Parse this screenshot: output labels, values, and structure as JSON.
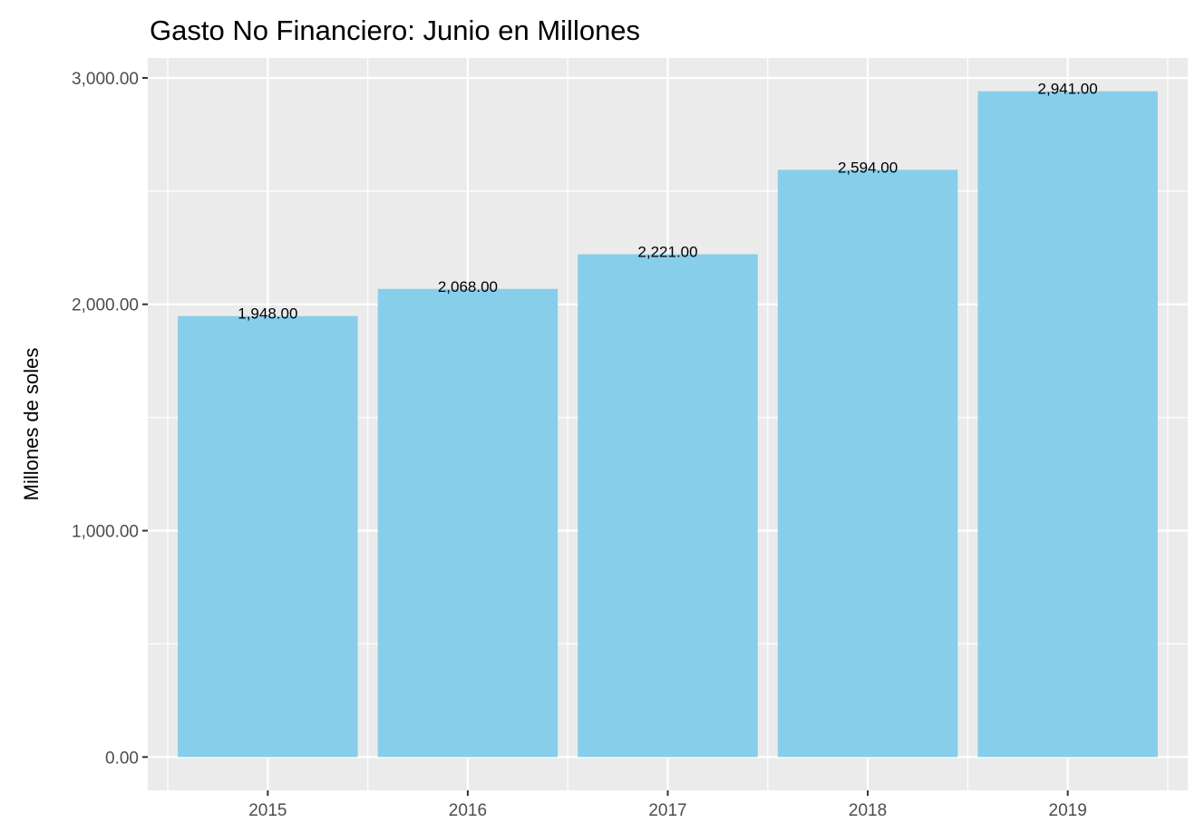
{
  "chart_data": {
    "type": "bar",
    "title": "Gasto No Financiero: Junio  en Millones",
    "xlabel": "",
    "ylabel": "Millones de soles",
    "categories": [
      "2015",
      "2016",
      "2017",
      "2018",
      "2019"
    ],
    "values": [
      1948,
      2068,
      2221,
      2594,
      2941
    ],
    "data_labels": [
      "1,948.00",
      "2,068.00",
      "2,221.00",
      "2,594.00",
      "2,941.00"
    ],
    "ylim": [
      -147,
      3088
    ],
    "yticks": [
      0,
      1000,
      2000,
      3000
    ],
    "ytick_labels": [
      "0.00",
      "1,000.00",
      "2,000.00",
      "3,000.00"
    ],
    "grid": true,
    "legend": "none",
    "colors": {
      "bar": "#87CEEB",
      "panel_background": "#EBEBEB",
      "gridline": "#FFFFFF",
      "tick_text": "#4D4D4D",
      "tick_mark": "#333333"
    }
  }
}
